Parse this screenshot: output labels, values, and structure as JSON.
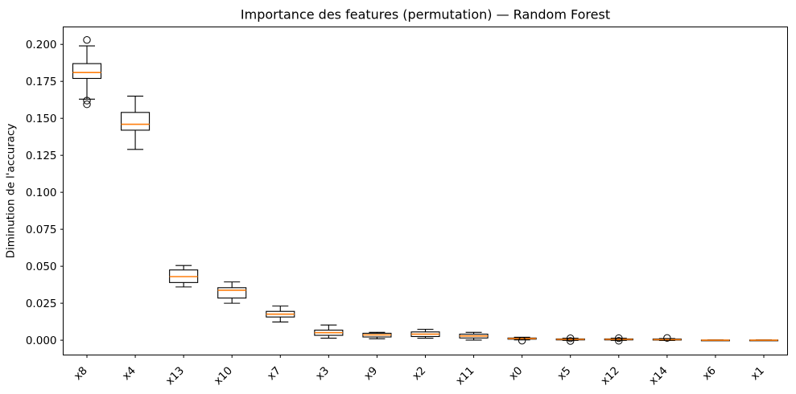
{
  "figure": {
    "title": "Importance des features (permutation) — Random Forest",
    "y_axis_label": "Diminution de l'accuracy"
  },
  "chart_data": {
    "type": "boxplot",
    "title": "Importance des features (permutation) — Random Forest",
    "xlabel": "",
    "ylabel": "Diminution de l'accuracy",
    "categories": [
      "x8",
      "x4",
      "x13",
      "x10",
      "x7",
      "x3",
      "x9",
      "x2",
      "x11",
      "x0",
      "x5",
      "x12",
      "x14",
      "x6",
      "x1"
    ],
    "ylim": [
      -0.01,
      0.2118
    ],
    "ytick_values": [
      0.0,
      0.025,
      0.05,
      0.075,
      0.1,
      0.125,
      0.15,
      0.175,
      0.2
    ],
    "ytick_labels": [
      "0.000",
      "0.025",
      "0.050",
      "0.075",
      "0.100",
      "0.125",
      "0.150",
      "0.175",
      "0.200"
    ],
    "grid": false,
    "legend": null,
    "colors": {
      "median_line": "#ff7f0e",
      "box_edge": "#000000",
      "whisker": "#000000",
      "flier_edge": "#000000",
      "background": "#ffffff"
    },
    "boxes": [
      {
        "label": "x8",
        "whislo": 0.163,
        "q1": 0.177,
        "med": 0.181,
        "q3": 0.187,
        "whishi": 0.199,
        "fliers": [
          0.203,
          0.162,
          0.1595
        ]
      },
      {
        "label": "x4",
        "whislo": 0.129,
        "q1": 0.142,
        "med": 0.146,
        "q3": 0.154,
        "whishi": 0.165,
        "fliers": []
      },
      {
        "label": "x13",
        "whislo": 0.036,
        "q1": 0.039,
        "med": 0.043,
        "q3": 0.0475,
        "whishi": 0.0505,
        "fliers": []
      },
      {
        "label": "x10",
        "whislo": 0.025,
        "q1": 0.0285,
        "med": 0.0338,
        "q3": 0.0355,
        "whishi": 0.0394,
        "fliers": []
      },
      {
        "label": "x7",
        "whislo": 0.0123,
        "q1": 0.0157,
        "med": 0.0176,
        "q3": 0.0195,
        "whishi": 0.0231,
        "fliers": []
      },
      {
        "label": "x3",
        "whislo": 0.0014,
        "q1": 0.0033,
        "med": 0.0051,
        "q3": 0.0068,
        "whishi": 0.0103,
        "fliers": []
      },
      {
        "label": "x9",
        "whislo": 0.001,
        "q1": 0.0022,
        "med": 0.0036,
        "q3": 0.0047,
        "whishi": 0.0053,
        "fliers": []
      },
      {
        "label": "x2",
        "whislo": 0.0014,
        "q1": 0.0025,
        "med": 0.0041,
        "q3": 0.0056,
        "whishi": 0.0074,
        "fliers": []
      },
      {
        "label": "x11",
        "whislo": 0.0001,
        "q1": 0.0015,
        "med": 0.0029,
        "q3": 0.0041,
        "whishi": 0.0053,
        "fliers": []
      },
      {
        "label": "x0",
        "whislo": 0.0002,
        "q1": 0.0007,
        "med": 0.0011,
        "q3": 0.0015,
        "whishi": 0.002,
        "fliers": [
          -0.0003
        ]
      },
      {
        "label": "x5",
        "whislo": -0.0001,
        "q1": 0.0002,
        "med": 0.0006,
        "q3": 0.0009,
        "whishi": 0.0013,
        "fliers": [
          -0.0005,
          0.0013
        ]
      },
      {
        "label": "x12",
        "whislo": -0.0001,
        "q1": 0.0002,
        "med": 0.0006,
        "q3": 0.0009,
        "whishi": 0.0013,
        "fliers": [
          -0.0004,
          0.0014
        ]
      },
      {
        "label": "x14",
        "whislo": -0.0002,
        "q1": 0.0001,
        "med": 0.0004,
        "q3": 0.0008,
        "whishi": 0.0011,
        "fliers": [
          0.0015
        ]
      },
      {
        "label": "x6",
        "whislo": -0.0002,
        "q1": -0.0001,
        "med": 0.0,
        "q3": 0.0001,
        "whishi": 0.0002,
        "fliers": []
      },
      {
        "label": "x1",
        "whislo": -0.0002,
        "q1": -0.0001,
        "med": 0.0,
        "q3": 0.0001,
        "whishi": 0.0002,
        "fliers": []
      }
    ]
  }
}
